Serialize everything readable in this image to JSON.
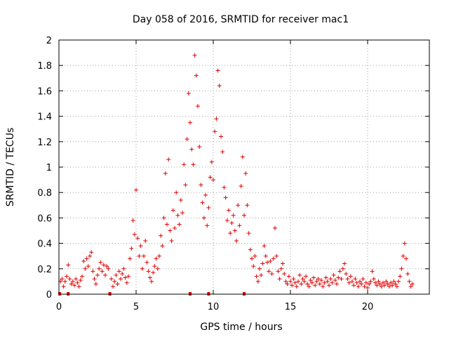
{
  "chart_data": {
    "type": "scatter",
    "title": "Day 058 of 2016, SRMTID for receiver mac1",
    "xlabel": "GPS time / hours",
    "ylabel": "SRMTID / TECUs",
    "xlim": [
      0,
      24
    ],
    "ylim": [
      0,
      2
    ],
    "grid": true,
    "marker": "+",
    "color": "#e00000",
    "xticks": [
      0,
      5,
      10,
      15,
      20
    ],
    "yticks": [
      0,
      0.2,
      0.4,
      0.6,
      0.8,
      1,
      1.2,
      1.4,
      1.6,
      1.8,
      2
    ],
    "xtick_labels": [
      "0",
      "5",
      "10",
      "15",
      "20"
    ],
    "ytick_labels": [
      "0",
      "0.2",
      "0.4",
      "0.6",
      "0.8",
      "1",
      "1.2",
      "1.4",
      "1.6",
      "1.8",
      "2"
    ],
    "zero_markers_x": [
      0.05,
      0.6,
      3.3,
      8.5,
      9.7,
      12.0
    ],
    "series": [
      {
        "name": "SRMTID",
        "points": [
          [
            0.1,
            0.1
          ],
          [
            0.2,
            0.12
          ],
          [
            0.3,
            0.06
          ],
          [
            0.4,
            0.1
          ],
          [
            0.5,
            0.14
          ],
          [
            0.6,
            0.23
          ],
          [
            0.7,
            0.12
          ],
          [
            0.8,
            0.08
          ],
          [
            0.9,
            0.1
          ],
          [
            1.0,
            0.07
          ],
          [
            1.1,
            0.12
          ],
          [
            1.2,
            0.09
          ],
          [
            1.3,
            0.06
          ],
          [
            1.4,
            0.11
          ],
          [
            1.5,
            0.14
          ],
          [
            1.6,
            0.26
          ],
          [
            1.7,
            0.2
          ],
          [
            1.8,
            0.28
          ],
          [
            1.9,
            0.22
          ],
          [
            2.0,
            0.3
          ],
          [
            2.1,
            0.33
          ],
          [
            2.2,
            0.18
          ],
          [
            2.3,
            0.12
          ],
          [
            2.4,
            0.08
          ],
          [
            2.5,
            0.15
          ],
          [
            2.6,
            0.2
          ],
          [
            2.7,
            0.25
          ],
          [
            2.8,
            0.18
          ],
          [
            2.9,
            0.23
          ],
          [
            3.0,
            0.15
          ],
          [
            3.1,
            0.22
          ],
          [
            3.2,
            0.2
          ],
          [
            3.4,
            0.12
          ],
          [
            3.5,
            0.06
          ],
          [
            3.6,
            0.1
          ],
          [
            3.7,
            0.15
          ],
          [
            3.8,
            0.08
          ],
          [
            3.9,
            0.18
          ],
          [
            4.0,
            0.12
          ],
          [
            4.1,
            0.16
          ],
          [
            4.2,
            0.2
          ],
          [
            4.3,
            0.13
          ],
          [
            4.4,
            0.09
          ],
          [
            4.5,
            0.14
          ],
          [
            4.6,
            0.28
          ],
          [
            4.7,
            0.36
          ],
          [
            4.8,
            0.58
          ],
          [
            4.9,
            0.47
          ],
          [
            5.0,
            0.82
          ],
          [
            5.1,
            0.44
          ],
          [
            5.2,
            0.3
          ],
          [
            5.3,
            0.38
          ],
          [
            5.4,
            0.2
          ],
          [
            5.5,
            0.3
          ],
          [
            5.6,
            0.42
          ],
          [
            5.7,
            0.25
          ],
          [
            5.8,
            0.18
          ],
          [
            5.9,
            0.13
          ],
          [
            6.0,
            0.1
          ],
          [
            6.1,
            0.17
          ],
          [
            6.2,
            0.22
          ],
          [
            6.3,
            0.28
          ],
          [
            6.4,
            0.2
          ],
          [
            6.5,
            0.3
          ],
          [
            6.6,
            0.46
          ],
          [
            6.7,
            0.38
          ],
          [
            6.8,
            0.6
          ],
          [
            6.9,
            0.95
          ],
          [
            7.0,
            0.55
          ],
          [
            7.1,
            1.06
          ],
          [
            7.2,
            0.5
          ],
          [
            7.3,
            0.42
          ],
          [
            7.4,
            0.66
          ],
          [
            7.5,
            0.52
          ],
          [
            7.6,
            0.8
          ],
          [
            7.7,
            0.62
          ],
          [
            7.8,
            0.55
          ],
          [
            7.9,
            0.74
          ],
          [
            8.0,
            0.64
          ],
          [
            8.1,
            1.02
          ],
          [
            8.2,
            0.86
          ],
          [
            8.3,
            1.22
          ],
          [
            8.4,
            1.58
          ],
          [
            8.5,
            1.35
          ],
          [
            8.6,
            1.14
          ],
          [
            8.7,
            1.02
          ],
          [
            8.8,
            1.88
          ],
          [
            8.9,
            1.72
          ],
          [
            9.0,
            1.48
          ],
          [
            9.1,
            1.16
          ],
          [
            9.2,
            0.86
          ],
          [
            9.3,
            0.72
          ],
          [
            9.4,
            0.6
          ],
          [
            9.5,
            0.78
          ],
          [
            9.6,
            0.54
          ],
          [
            9.7,
            0.68
          ],
          [
            9.8,
            0.92
          ],
          [
            9.9,
            1.04
          ],
          [
            10.0,
            0.9
          ],
          [
            10.1,
            1.28
          ],
          [
            10.2,
            1.38
          ],
          [
            10.3,
            1.76
          ],
          [
            10.4,
            1.64
          ],
          [
            10.5,
            1.24
          ],
          [
            10.6,
            1.12
          ],
          [
            10.7,
            0.84
          ],
          [
            10.8,
            0.76
          ],
          [
            10.9,
            0.58
          ],
          [
            11.0,
            0.66
          ],
          [
            11.1,
            0.48
          ],
          [
            11.2,
            0.56
          ],
          [
            11.3,
            0.62
          ],
          [
            11.4,
            0.5
          ],
          [
            11.5,
            0.42
          ],
          [
            11.6,
            0.7
          ],
          [
            11.7,
            0.54
          ],
          [
            11.8,
            0.85
          ],
          [
            11.9,
            1.08
          ],
          [
            12.0,
            0.62
          ],
          [
            12.1,
            0.95
          ],
          [
            12.2,
            0.7
          ],
          [
            12.3,
            0.48
          ],
          [
            12.4,
            0.35
          ],
          [
            12.5,
            0.28
          ],
          [
            12.6,
            0.22
          ],
          [
            12.7,
            0.3
          ],
          [
            12.8,
            0.14
          ],
          [
            12.9,
            0.1
          ],
          [
            13.0,
            0.2
          ],
          [
            13.1,
            0.15
          ],
          [
            13.2,
            0.24
          ],
          [
            13.3,
            0.38
          ],
          [
            13.4,
            0.3
          ],
          [
            13.5,
            0.25
          ],
          [
            13.6,
            0.18
          ],
          [
            13.7,
            0.26
          ],
          [
            13.8,
            0.16
          ],
          [
            13.9,
            0.28
          ],
          [
            14.0,
            0.52
          ],
          [
            14.1,
            0.3
          ],
          [
            14.2,
            0.18
          ],
          [
            14.3,
            0.12
          ],
          [
            14.4,
            0.2
          ],
          [
            14.5,
            0.24
          ],
          [
            14.6,
            0.16
          ],
          [
            14.7,
            0.1
          ],
          [
            14.8,
            0.08
          ],
          [
            14.9,
            0.14
          ],
          [
            15.0,
            0.1
          ],
          [
            15.1,
            0.07
          ],
          [
            15.2,
            0.12
          ],
          [
            15.3,
            0.09
          ],
          [
            15.4,
            0.06
          ],
          [
            15.5,
            0.1
          ],
          [
            15.6,
            0.15
          ],
          [
            15.7,
            0.08
          ],
          [
            15.8,
            0.12
          ],
          [
            15.9,
            0.1
          ],
          [
            16.0,
            0.14
          ],
          [
            16.1,
            0.08
          ],
          [
            16.2,
            0.06
          ],
          [
            16.3,
            0.11
          ],
          [
            16.4,
            0.09
          ],
          [
            16.5,
            0.13
          ],
          [
            16.6,
            0.07
          ],
          [
            16.7,
            0.1
          ],
          [
            16.8,
            0.12
          ],
          [
            16.9,
            0.08
          ],
          [
            17.0,
            0.11
          ],
          [
            17.1,
            0.06
          ],
          [
            17.2,
            0.09
          ],
          [
            17.3,
            0.13
          ],
          [
            17.4,
            0.1
          ],
          [
            17.5,
            0.07
          ],
          [
            17.6,
            0.12
          ],
          [
            17.7,
            0.09
          ],
          [
            17.8,
            0.15
          ],
          [
            17.9,
            0.11
          ],
          [
            18.0,
            0.08
          ],
          [
            18.1,
            0.13
          ],
          [
            18.2,
            0.18
          ],
          [
            18.3,
            0.12
          ],
          [
            18.4,
            0.2
          ],
          [
            18.5,
            0.24
          ],
          [
            18.6,
            0.16
          ],
          [
            18.7,
            0.12
          ],
          [
            18.8,
            0.09
          ],
          [
            18.9,
            0.14
          ],
          [
            19.0,
            0.1
          ],
          [
            19.1,
            0.07
          ],
          [
            19.2,
            0.12
          ],
          [
            19.3,
            0.09
          ],
          [
            19.4,
            0.06
          ],
          [
            19.5,
            0.1
          ],
          [
            19.6,
            0.08
          ],
          [
            19.7,
            0.12
          ],
          [
            19.8,
            0.06
          ],
          [
            19.9,
            0.09
          ],
          [
            20.0,
            0.05
          ],
          [
            20.1,
            0.08
          ],
          [
            20.2,
            0.1
          ],
          [
            20.3,
            0.18
          ],
          [
            20.4,
            0.12
          ],
          [
            20.5,
            0.09
          ],
          [
            20.6,
            0.07
          ],
          [
            20.7,
            0.1
          ],
          [
            20.8,
            0.08
          ],
          [
            20.9,
            0.06
          ],
          [
            21.0,
            0.09
          ],
          [
            21.1,
            0.07
          ],
          [
            21.2,
            0.1
          ],
          [
            21.3,
            0.08
          ],
          [
            21.4,
            0.06
          ],
          [
            21.5,
            0.09
          ],
          [
            21.6,
            0.07
          ],
          [
            21.7,
            0.1
          ],
          [
            21.8,
            0.08
          ],
          [
            21.9,
            0.06
          ],
          [
            22.0,
            0.1
          ],
          [
            22.1,
            0.14
          ],
          [
            22.2,
            0.2
          ],
          [
            22.3,
            0.3
          ],
          [
            22.4,
            0.4
          ],
          [
            22.5,
            0.28
          ],
          [
            22.6,
            0.16
          ],
          [
            22.7,
            0.1
          ],
          [
            22.8,
            0.06
          ],
          [
            22.9,
            0.08
          ]
        ]
      }
    ]
  }
}
